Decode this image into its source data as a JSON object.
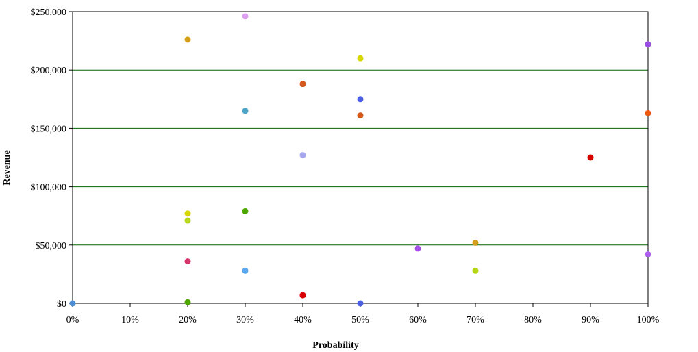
{
  "chart_data": {
    "type": "scatter",
    "xlabel": "Probability",
    "ylabel": "Revenue",
    "xlim": [
      0,
      100
    ],
    "ylim": [
      0,
      250000
    ],
    "x_ticks": [
      "0%",
      "10%",
      "20%",
      "30%",
      "40%",
      "50%",
      "60%",
      "70%",
      "80%",
      "90%",
      "100%"
    ],
    "y_ticks": [
      "$0",
      "$50,000",
      "$100,000",
      "$150,000",
      "$200,000",
      "$250,000"
    ],
    "y_tick_values": [
      0,
      50000,
      100000,
      150000,
      200000,
      250000
    ],
    "grid": "horizontal",
    "grid_color": "#006600",
    "points": [
      {
        "x": 0,
        "y": 0,
        "color": "#4d8fd6"
      },
      {
        "x": 20,
        "y": 226000,
        "color": "#d4a017"
      },
      {
        "x": 20,
        "y": 77000,
        "color": "#d6d600"
      },
      {
        "x": 20,
        "y": 71000,
        "color": "#b5d616"
      },
      {
        "x": 20,
        "y": 36000,
        "color": "#d6336b"
      },
      {
        "x": 20,
        "y": 1000,
        "color": "#4da600"
      },
      {
        "x": 30,
        "y": 246000,
        "color": "#dda0f0"
      },
      {
        "x": 30,
        "y": 165000,
        "color": "#4da6c8"
      },
      {
        "x": 30,
        "y": 79000,
        "color": "#4da600"
      },
      {
        "x": 30,
        "y": 28000,
        "color": "#5aa8ee"
      },
      {
        "x": 40,
        "y": 188000,
        "color": "#d4581a"
      },
      {
        "x": 40,
        "y": 127000,
        "color": "#a8a8ee"
      },
      {
        "x": 40,
        "y": 7000,
        "color": "#d60000"
      },
      {
        "x": 50,
        "y": 210000,
        "color": "#d6d600"
      },
      {
        "x": 50,
        "y": 175000,
        "color": "#4d5ee6"
      },
      {
        "x": 50,
        "y": 161000,
        "color": "#d4581a"
      },
      {
        "x": 50,
        "y": 0,
        "color": "#4d5ee6"
      },
      {
        "x": 60,
        "y": 47000,
        "color": "#a64dee"
      },
      {
        "x": 70,
        "y": 52000,
        "color": "#d4a017"
      },
      {
        "x": 70,
        "y": 28000,
        "color": "#b5d616"
      },
      {
        "x": 90,
        "y": 125000,
        "color": "#d60000"
      },
      {
        "x": 100,
        "y": 222000,
        "color": "#9c4de6"
      },
      {
        "x": 100,
        "y": 163000,
        "color": "#e6580a"
      },
      {
        "x": 100,
        "y": 42000,
        "color": "#b05ef0"
      }
    ]
  }
}
